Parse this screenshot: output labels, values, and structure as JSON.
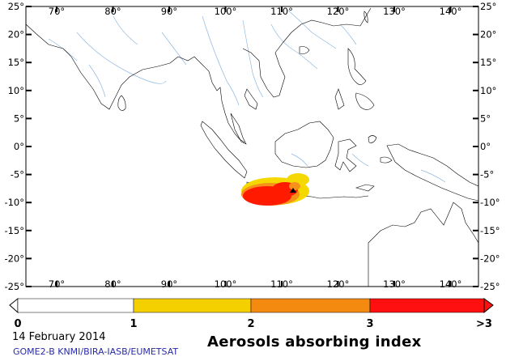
{
  "map": {
    "lon_labels": [
      "70°",
      "80°",
      "90°",
      "100°",
      "110°",
      "120°",
      "130°",
      "140°"
    ],
    "lat_labels": [
      "25°",
      "20°",
      "15°",
      "10°",
      "5°",
      "0°",
      "-5°",
      "-10°",
      "-15°",
      "-20°",
      "-25°"
    ],
    "plume_colors": {
      "high": "#ff1a00",
      "mid": "#f7911a",
      "low": "#f5d800"
    }
  },
  "colorbar": {
    "labels": [
      "0",
      "1",
      "2",
      "3",
      ">3"
    ],
    "bins": [
      {
        "range": "0-1",
        "color": "#ffffff"
      },
      {
        "range": "1-2",
        "color": "#f5d000"
      },
      {
        "range": "2-3",
        "color": "#f58a10"
      },
      {
        "range": ">3",
        "color": "#ff1010"
      }
    ]
  },
  "footer": {
    "date": "14 February 2014",
    "credit": "GOME2-B  KNMI/BIRA-IASB/EUMETSAT",
    "title": "Aerosols absorbing index"
  }
}
